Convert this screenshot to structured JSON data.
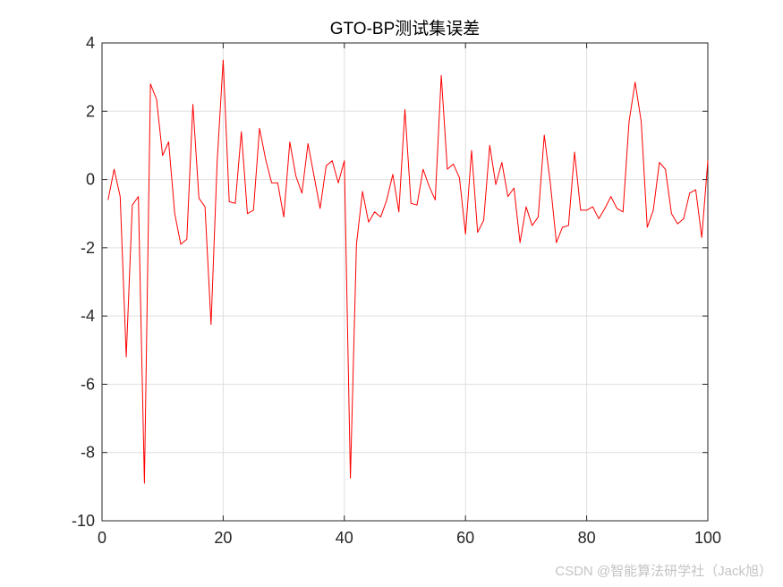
{
  "chart_data": {
    "type": "line",
    "title": "GTO-BP测试集误差",
    "xlabel": "",
    "ylabel": "",
    "xlim": [
      0,
      100
    ],
    "ylim": [
      -10,
      4
    ],
    "x_ticks": [
      0,
      20,
      40,
      60,
      80,
      100
    ],
    "y_ticks": [
      -10,
      -8,
      -6,
      -4,
      -2,
      0,
      2,
      4
    ],
    "grid": true,
    "series": [
      {
        "color": "#ff0000",
        "x": [
          1,
          2,
          3,
          4,
          5,
          6,
          7,
          8,
          9,
          10,
          11,
          12,
          13,
          14,
          15,
          16,
          17,
          18,
          19,
          20,
          21,
          22,
          23,
          24,
          25,
          26,
          27,
          28,
          29,
          30,
          31,
          32,
          33,
          34,
          35,
          36,
          37,
          38,
          39,
          40,
          41,
          42,
          43,
          44,
          45,
          46,
          47,
          48,
          49,
          50,
          51,
          52,
          53,
          54,
          55,
          56,
          57,
          58,
          59,
          60,
          61,
          62,
          63,
          64,
          65,
          66,
          67,
          68,
          69,
          70,
          71,
          72,
          73,
          74,
          75,
          76,
          77,
          78,
          79,
          80,
          81,
          82,
          83,
          84,
          85,
          86,
          87,
          88,
          89,
          90,
          91,
          92,
          93,
          94,
          95,
          96,
          97,
          98,
          99,
          100
        ],
        "values": [
          -0.6,
          0.3,
          -0.5,
          -5.2,
          -0.75,
          -0.5,
          -8.9,
          2.8,
          2.35,
          0.7,
          1.1,
          -1.0,
          -1.9,
          -1.75,
          2.2,
          -0.55,
          -0.8,
          -4.25,
          0.5,
          3.5,
          -0.65,
          -0.7,
          1.4,
          -1.0,
          -0.9,
          1.5,
          0.6,
          -0.1,
          -0.1,
          -1.1,
          1.1,
          0.1,
          -0.4,
          1.05,
          0.1,
          -0.85,
          0.4,
          0.55,
          -0.1,
          0.55,
          -8.75,
          -1.9,
          -0.35,
          -1.25,
          -0.95,
          -1.1,
          -0.6,
          0.15,
          -0.95,
          2.05,
          -0.7,
          -0.75,
          0.3,
          -0.2,
          -0.6,
          3.05,
          0.3,
          0.45,
          0.05,
          -1.6,
          0.85,
          -1.55,
          -1.2,
          1.0,
          -0.15,
          0.5,
          -0.5,
          -0.25,
          -1.85,
          -0.8,
          -1.35,
          -1.1,
          1.3,
          -0.1,
          -1.85,
          -1.4,
          -1.35,
          0.8,
          -0.9,
          -0.9,
          -0.8,
          -1.15,
          -0.85,
          -0.5,
          -0.85,
          -0.95,
          1.7,
          2.85,
          1.7,
          -1.4,
          -0.9,
          0.5,
          0.3,
          -1.0,
          -1.3,
          -1.15,
          -0.4,
          -0.3,
          -1.7,
          0.55
        ]
      }
    ]
  },
  "watermark": "CSDN @智能算法研学社（Jack旭）"
}
